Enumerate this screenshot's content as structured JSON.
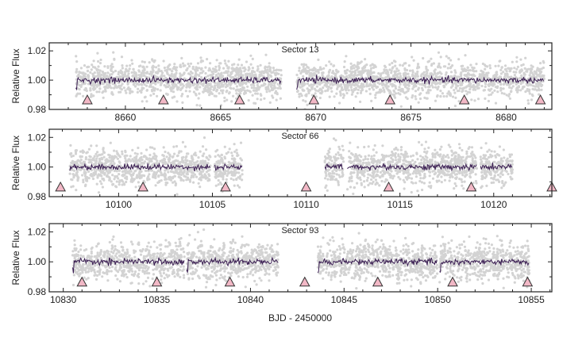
{
  "chart_data": {
    "type": "scatter",
    "xlabel": "BJD - 2450000",
    "ylabel": "Relative Flux",
    "colors": {
      "raw": "#d3d3d3",
      "binned": "#3a1d52",
      "transit_marker": "#f2b8c6",
      "marker_edge": "#333333"
    },
    "panels": [
      {
        "title": "Sector 13",
        "xlim": [
          8656.0,
          8682.4
        ],
        "ylim": [
          0.98,
          1.0255
        ],
        "xticks": [
          8660,
          8665,
          8670,
          8675,
          8680
        ],
        "xtick_labels": [
          "8660",
          "8665",
          "8670",
          "8675",
          "8680"
        ],
        "yticks": [
          0.98,
          1.0,
          1.02
        ],
        "ytick_labels": [
          "0.98",
          "1.00",
          "1.02"
        ],
        "segments": [
          [
            8657.4,
            8668.2
          ],
          [
            8669.0,
            8682.0
          ]
        ],
        "transit_times": [
          8658.0,
          8662.0,
          8666.0,
          8669.9,
          8673.9,
          8677.8,
          8681.8
        ]
      },
      {
        "title": "Sector 66",
        "xlim": [
          10096.3,
          10123.1
        ],
        "ylim": [
          0.98,
          1.0255
        ],
        "xticks": [
          10100,
          10105,
          10110,
          10115,
          10120
        ],
        "xtick_labels": [
          "10100",
          "10105",
          "10110",
          "10115",
          "10120"
        ],
        "yticks": [
          0.98,
          1.0,
          1.02
        ],
        "ytick_labels": [
          "0.98",
          "1.00",
          "1.02"
        ],
        "segments": [
          [
            10097.4,
            10104.9
          ],
          [
            10105.1,
            10106.6
          ],
          [
            10111.0,
            10112.0
          ],
          [
            10112.2,
            10119.1
          ],
          [
            10119.3,
            10121.0
          ]
        ],
        "transit_times": [
          10096.9,
          10101.3,
          10105.7,
          10110.0,
          10114.4,
          10118.8,
          10123.1
        ]
      },
      {
        "title": "Sector 93",
        "xlim": [
          10829.25,
          10856.1
        ],
        "ylim": [
          0.98,
          1.0255
        ],
        "xticks": [
          10830,
          10835,
          10840,
          10845,
          10850,
          10855
        ],
        "xtick_labels": [
          "10830",
          "10835",
          "10840",
          "10845",
          "10850",
          "10855"
        ],
        "yticks": [
          0.98,
          1.0,
          1.02
        ],
        "ytick_labels": [
          "0.98",
          "1.00",
          "1.02"
        ],
        "segments": [
          [
            10830.5,
            10836.5
          ],
          [
            10836.6,
            10841.5
          ],
          [
            10843.6,
            10850.0
          ],
          [
            10850.1,
            10854.9
          ]
        ],
        "transit_times": [
          10831.0,
          10835.0,
          10838.9,
          10842.9,
          10846.8,
          10850.8,
          10854.8
        ]
      }
    ],
    "raw_flux_scatter": 0.006,
    "binned_flux_scatter": 0.001,
    "grid": false
  }
}
